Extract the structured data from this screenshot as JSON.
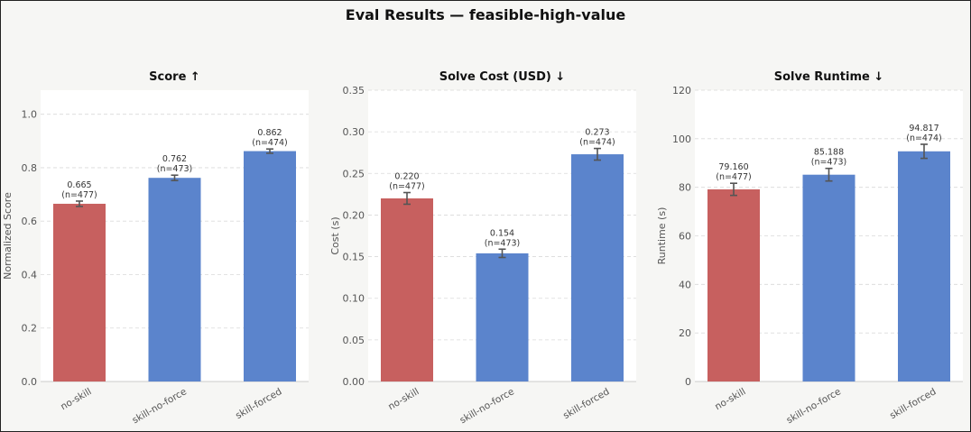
{
  "title": "Eval Results  —  feasible-high-value",
  "colors": {
    "baseline": "#c7605f",
    "skill": "#5b84cc"
  },
  "chart_data": [
    {
      "type": "bar",
      "title": "Score ↑",
      "ylabel": "Normalized Score",
      "categories": [
        "no-skill",
        "skill-no-force",
        "skill-forced"
      ],
      "values": [
        0.665,
        0.762,
        0.862
      ],
      "errors": [
        0.01,
        0.01,
        0.008
      ],
      "labels": [
        "0.665",
        "0.762",
        "0.862"
      ],
      "counts": [
        "(n=477)",
        "(n=473)",
        "(n=474)"
      ],
      "ylim": [
        0,
        1.09
      ],
      "yticks": [
        0.0,
        0.2,
        0.4,
        0.6,
        0.8,
        1.0
      ],
      "ytick_labels": [
        "0.0",
        "0.2",
        "0.4",
        "0.6",
        "0.8",
        "1.0"
      ]
    },
    {
      "type": "bar",
      "title": "Solve Cost (USD) ↓",
      "ylabel": "Cost (s)",
      "categories": [
        "no-skill",
        "skill-no-force",
        "skill-forced"
      ],
      "values": [
        0.22,
        0.154,
        0.273
      ],
      "errors": [
        0.007,
        0.005,
        0.007
      ],
      "labels": [
        "0.220",
        "0.154",
        "0.273"
      ],
      "counts": [
        "(n=477)",
        "(n=473)",
        "(n=474)"
      ],
      "ylim": [
        0,
        0.35
      ],
      "yticks": [
        0.0,
        0.05,
        0.1,
        0.15,
        0.2,
        0.25,
        0.3,
        0.35
      ],
      "ytick_labels": [
        "0.00",
        "0.05",
        "0.10",
        "0.15",
        "0.20",
        "0.25",
        "0.30",
        "0.35"
      ]
    },
    {
      "type": "bar",
      "title": "Solve Runtime ↓",
      "ylabel": "Runtime (s)",
      "categories": [
        "no-skill",
        "skill-no-force",
        "skill-forced"
      ],
      "values": [
        79.16,
        85.188,
        94.817
      ],
      "errors": [
        2.5,
        2.6,
        2.9
      ],
      "labels": [
        "79.160",
        "85.188",
        "94.817"
      ],
      "counts": [
        "(n=477)",
        "(n=473)",
        "(n=474)"
      ],
      "ylim": [
        0,
        120
      ],
      "yticks": [
        0,
        20,
        40,
        60,
        80,
        100,
        120
      ],
      "ytick_labels": [
        "0",
        "20",
        "40",
        "60",
        "80",
        "100",
        "120"
      ]
    }
  ]
}
